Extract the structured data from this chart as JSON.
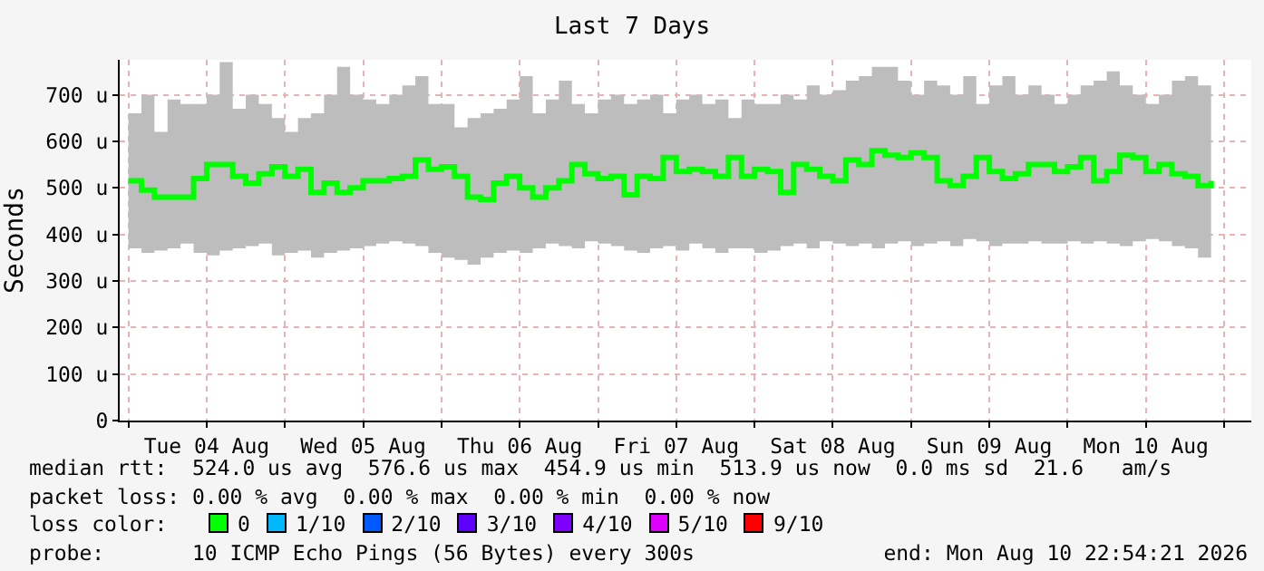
{
  "chart_data": {
    "type": "step",
    "title": "Last 7 Days",
    "ylabel": "Seconds",
    "xlim": [
      "2026-08-03T22:40",
      "2026-08-11T04:10"
    ],
    "xticks": [
      {
        "value": "2026-08-04T00:00",
        "label": null
      },
      {
        "value": "2026-08-04T12:00",
        "label": "Tue 04 Aug"
      },
      {
        "value": "2026-08-05T00:00",
        "label": null
      },
      {
        "value": "2026-08-05T12:00",
        "label": "Wed 05 Aug"
      },
      {
        "value": "2026-08-06T00:00",
        "label": null
      },
      {
        "value": "2026-08-06T12:00",
        "label": "Thu 06 Aug"
      },
      {
        "value": "2026-08-07T00:00",
        "label": null
      },
      {
        "value": "2026-08-07T12:00",
        "label": "Fri 07 Aug"
      },
      {
        "value": "2026-08-08T00:00",
        "label": null
      },
      {
        "value": "2026-08-08T12:00",
        "label": "Sat 08 Aug"
      },
      {
        "value": "2026-08-09T00:00",
        "label": null
      },
      {
        "value": "2026-08-09T12:00",
        "label": "Sun 09 Aug"
      },
      {
        "value": "2026-08-10T00:00",
        "label": null
      },
      {
        "value": "2026-08-10T12:00",
        "label": "Mon 10 Aug"
      },
      {
        "value": "2026-08-11T00:00",
        "label": null
      }
    ],
    "ylim": [
      0,
      775
    ],
    "yticks": [
      0,
      {
        "value": 100,
        "label": "100 u"
      },
      {
        "value": 200,
        "label": "200 u"
      },
      {
        "value": 300,
        "label": "300 u"
      },
      {
        "value": 400,
        "label": "400 u"
      },
      {
        "value": 500,
        "label": "500 u"
      },
      {
        "value": 600,
        "label": "600 u"
      },
      {
        "value": 700,
        "label": "700 u"
      }
    ],
    "grid": true,
    "legend": "bottom",
    "legend_title": "loss color:",
    "x": [
      "2026-08-04T00:00",
      "2026-08-04T02:00",
      "2026-08-04T04:00",
      "2026-08-04T06:00",
      "2026-08-04T08:00",
      "2026-08-04T10:00",
      "2026-08-04T12:00",
      "2026-08-04T14:00",
      "2026-08-04T16:00",
      "2026-08-04T18:00",
      "2026-08-04T20:00",
      "2026-08-04T22:00",
      "2026-08-05T00:00",
      "2026-08-05T02:00",
      "2026-08-05T04:00",
      "2026-08-05T06:00",
      "2026-08-05T08:00",
      "2026-08-05T10:00",
      "2026-08-05T12:00",
      "2026-08-05T14:00",
      "2026-08-05T16:00",
      "2026-08-05T18:00",
      "2026-08-05T20:00",
      "2026-08-05T22:00",
      "2026-08-06T00:00",
      "2026-08-06T02:00",
      "2026-08-06T04:00",
      "2026-08-06T06:00",
      "2026-08-06T08:00",
      "2026-08-06T10:00",
      "2026-08-06T12:00",
      "2026-08-06T14:00",
      "2026-08-06T16:00",
      "2026-08-06T18:00",
      "2026-08-06T20:00",
      "2026-08-06T22:00",
      "2026-08-07T00:00",
      "2026-08-07T02:00",
      "2026-08-07T04:00",
      "2026-08-07T06:00",
      "2026-08-07T08:00",
      "2026-08-07T10:00",
      "2026-08-07T12:00",
      "2026-08-07T14:00",
      "2026-08-07T16:00",
      "2026-08-07T18:00",
      "2026-08-07T20:00",
      "2026-08-07T22:00",
      "2026-08-08T00:00",
      "2026-08-08T02:00",
      "2026-08-08T04:00",
      "2026-08-08T06:00",
      "2026-08-08T08:00",
      "2026-08-08T10:00",
      "2026-08-08T12:00",
      "2026-08-08T14:00",
      "2026-08-08T16:00",
      "2026-08-08T18:00",
      "2026-08-08T20:00",
      "2026-08-08T22:00",
      "2026-08-09T00:00",
      "2026-08-09T02:00",
      "2026-08-09T04:00",
      "2026-08-09T06:00",
      "2026-08-09T08:00",
      "2026-08-09T10:00",
      "2026-08-09T12:00",
      "2026-08-09T14:00",
      "2026-08-09T16:00",
      "2026-08-09T18:00",
      "2026-08-09T20:00",
      "2026-08-09T22:00",
      "2026-08-10T00:00",
      "2026-08-10T02:00",
      "2026-08-10T04:00",
      "2026-08-10T06:00",
      "2026-08-10T08:00",
      "2026-08-10T10:00",
      "2026-08-10T12:00",
      "2026-08-10T14:00",
      "2026-08-10T16:00",
      "2026-08-10T18:00",
      "2026-08-10T20:00",
      "2026-08-10T22:00"
    ],
    "series": [
      {
        "name": "0",
        "color": "#00ff00",
        "values": [
          515,
          495,
          480,
          480,
          480,
          520,
          550,
          550,
          525,
          510,
          530,
          545,
          525,
          540,
          490,
          510,
          490,
          500,
          515,
          515,
          520,
          525,
          560,
          540,
          545,
          525,
          480,
          475,
          510,
          525,
          500,
          480,
          500,
          515,
          550,
          530,
          520,
          525,
          485,
          525,
          520,
          565,
          535,
          540,
          535,
          525,
          565,
          525,
          540,
          535,
          490,
          550,
          540,
          525,
          515,
          560,
          550,
          580,
          570,
          565,
          575,
          565,
          515,
          505,
          525,
          565,
          535,
          520,
          530,
          550,
          550,
          535,
          545,
          565,
          515,
          535,
          570,
          565,
          535,
          550,
          530,
          525,
          505,
          515
        ],
        "upper": [
          660,
          700,
          620,
          690,
          680,
          680,
          700,
          770,
          670,
          700,
          680,
          650,
          620,
          650,
          660,
          700,
          760,
          700,
          690,
          680,
          700,
          720,
          740,
          680,
          680,
          630,
          650,
          660,
          670,
          690,
          740,
          660,
          690,
          730,
          680,
          660,
          690,
          700,
          680,
          690,
          700,
          660,
          690,
          700,
          680,
          690,
          650,
          690,
          680,
          680,
          700,
          690,
          720,
          700,
          710,
          730,
          740,
          760,
          760,
          730,
          700,
          730,
          720,
          700,
          740,
          680,
          720,
          740,
          700,
          720,
          700,
          680,
          700,
          720,
          730,
          750,
          720,
          700,
          680,
          700,
          730,
          740,
          720,
          770
        ],
        "lower": [
          380,
          370,
          360,
          365,
          370,
          380,
          360,
          355,
          365,
          370,
          375,
          380,
          355,
          360,
          365,
          350,
          360,
          365,
          370,
          375,
          380,
          385,
          380,
          375,
          360,
          350,
          345,
          335,
          350,
          360,
          365,
          360,
          370,
          380,
          375,
          370,
          385,
          380,
          375,
          365,
          360,
          370,
          375,
          365,
          380,
          370,
          360,
          370,
          370,
          360,
          365,
          375,
          380,
          370,
          385,
          380,
          375,
          380,
          370,
          380,
          385,
          375,
          380,
          385,
          375,
          390,
          385,
          375,
          380,
          380,
          385,
          380,
          380,
          385,
          380,
          385,
          380,
          375,
          385,
          390,
          385,
          375,
          370,
          350
        ]
      },
      {
        "name": "1/10",
        "color": "#00b8ff",
        "values": [
          null,
          null,
          null,
          null,
          null,
          null,
          null,
          null,
          null,
          null,
          null,
          null,
          null,
          null,
          null,
          null,
          null,
          null,
          null,
          null,
          null,
          null,
          null,
          null,
          null,
          null,
          null,
          null,
          null,
          null,
          null,
          null,
          null,
          null,
          null,
          null,
          null,
          null,
          null,
          null,
          null,
          null,
          null,
          null,
          null,
          null,
          null,
          null,
          null,
          null,
          null,
          null,
          null,
          null,
          null,
          null,
          null,
          null,
          null,
          null,
          null,
          null,
          null,
          null,
          null,
          null,
          null,
          null,
          null,
          null,
          null,
          null,
          null,
          null,
          null,
          null,
          null,
          null,
          null,
          null,
          null,
          null,
          null,
          null
        ]
      },
      {
        "name": "2/10",
        "color": "#0059ff",
        "values": [
          null,
          null,
          null,
          null,
          null,
          null,
          null,
          null,
          null,
          null,
          null,
          null,
          null,
          null,
          null,
          null,
          null,
          null,
          null,
          null,
          null,
          null,
          null,
          null,
          null,
          null,
          null,
          null,
          null,
          null,
          null,
          null,
          null,
          null,
          null,
          null,
          null,
          null,
          null,
          null,
          null,
          null,
          null,
          null,
          null,
          null,
          null,
          null,
          null,
          null,
          null,
          null,
          null,
          null,
          null,
          null,
          null,
          null,
          null,
          null,
          null,
          null,
          null,
          null,
          null,
          null,
          null,
          null,
          null,
          null,
          null,
          null,
          null,
          null,
          null,
          null,
          null,
          null,
          null,
          null,
          null,
          null,
          null,
          null
        ]
      },
      {
        "name": "3/10",
        "color": "#5e00ff",
        "values": [
          null,
          null,
          null,
          null,
          null,
          null,
          null,
          null,
          null,
          null,
          null,
          null,
          null,
          null,
          null,
          null,
          null,
          null,
          null,
          null,
          null,
          null,
          null,
          null,
          null,
          null,
          null,
          null,
          null,
          null,
          null,
          null,
          null,
          null,
          null,
          null,
          null,
          null,
          null,
          null,
          null,
          null,
          null,
          null,
          null,
          null,
          null,
          null,
          null,
          null,
          null,
          null,
          null,
          null,
          null,
          null,
          null,
          null,
          null,
          null,
          null,
          null,
          null,
          null,
          null,
          null,
          null,
          null,
          null,
          null,
          null,
          null,
          null,
          null,
          null,
          null,
          null,
          null,
          null,
          null,
          null,
          null,
          null,
          null
        ]
      },
      {
        "name": "4/10",
        "color": "#7e00ff",
        "values": [
          null,
          null,
          null,
          null,
          null,
          null,
          null,
          null,
          null,
          null,
          null,
          null,
          null,
          null,
          null,
          null,
          null,
          null,
          null,
          null,
          null,
          null,
          null,
          null,
          null,
          null,
          null,
          null,
          null,
          null,
          null,
          null,
          null,
          null,
          null,
          null,
          null,
          null,
          null,
          null,
          null,
          null,
          null,
          null,
          null,
          null,
          null,
          null,
          null,
          null,
          null,
          null,
          null,
          null,
          null,
          null,
          null,
          null,
          null,
          null,
          null,
          null,
          null,
          null,
          null,
          null,
          null,
          null,
          null,
          null,
          null,
          null,
          null,
          null,
          null,
          null,
          null,
          null,
          null,
          null,
          null,
          null,
          null,
          null
        ]
      },
      {
        "name": "5/10",
        "color": "#dd00ff",
        "values": [
          null,
          null,
          null,
          null,
          null,
          null,
          null,
          null,
          null,
          null,
          null,
          null,
          null,
          null,
          null,
          null,
          null,
          null,
          null,
          null,
          null,
          null,
          null,
          null,
          null,
          null,
          null,
          null,
          null,
          null,
          null,
          null,
          null,
          null,
          null,
          null,
          null,
          null,
          null,
          null,
          null,
          null,
          null,
          null,
          null,
          null,
          null,
          null,
          null,
          null,
          null,
          null,
          null,
          null,
          null,
          null,
          null,
          null,
          null,
          null,
          null,
          null,
          null,
          null,
          null,
          null,
          null,
          null,
          null,
          null,
          null,
          null,
          null,
          null,
          null,
          null,
          null,
          null,
          null,
          null,
          null,
          null,
          null,
          null
        ]
      },
      {
        "name": "9/10",
        "color": "#ff0000",
        "values": [
          null,
          null,
          null,
          null,
          null,
          null,
          null,
          null,
          null,
          null,
          null,
          null,
          null,
          null,
          null,
          null,
          null,
          null,
          null,
          null,
          null,
          null,
          null,
          null,
          null,
          null,
          null,
          null,
          null,
          null,
          null,
          null,
          null,
          null,
          null,
          null,
          null,
          null,
          null,
          null,
          null,
          null,
          null,
          null,
          null,
          null,
          null,
          null,
          null,
          null,
          null,
          null,
          null,
          null,
          null,
          null,
          null,
          null,
          null,
          null,
          null,
          null,
          null,
          null,
          null,
          null,
          null,
          null,
          null,
          null,
          null,
          null,
          null,
          null,
          null,
          null,
          null,
          null,
          null,
          null,
          null,
          null,
          null,
          null
        ]
      }
    ],
    "annotations": [
      "median rtt:  524.0 us avg  576.6 us max  454.9 us min  513.9 us now  0.0 ms sd  21.6   am/s",
      "packet loss: 0.00 % avg  0.00 % max  0.00 % min  0.00 % now",
      "probe:       10 ICMP Echo Pings (56 Bytes) every 300s",
      "end: Mon Aug 10 22:54:21 2026"
    ]
  }
}
